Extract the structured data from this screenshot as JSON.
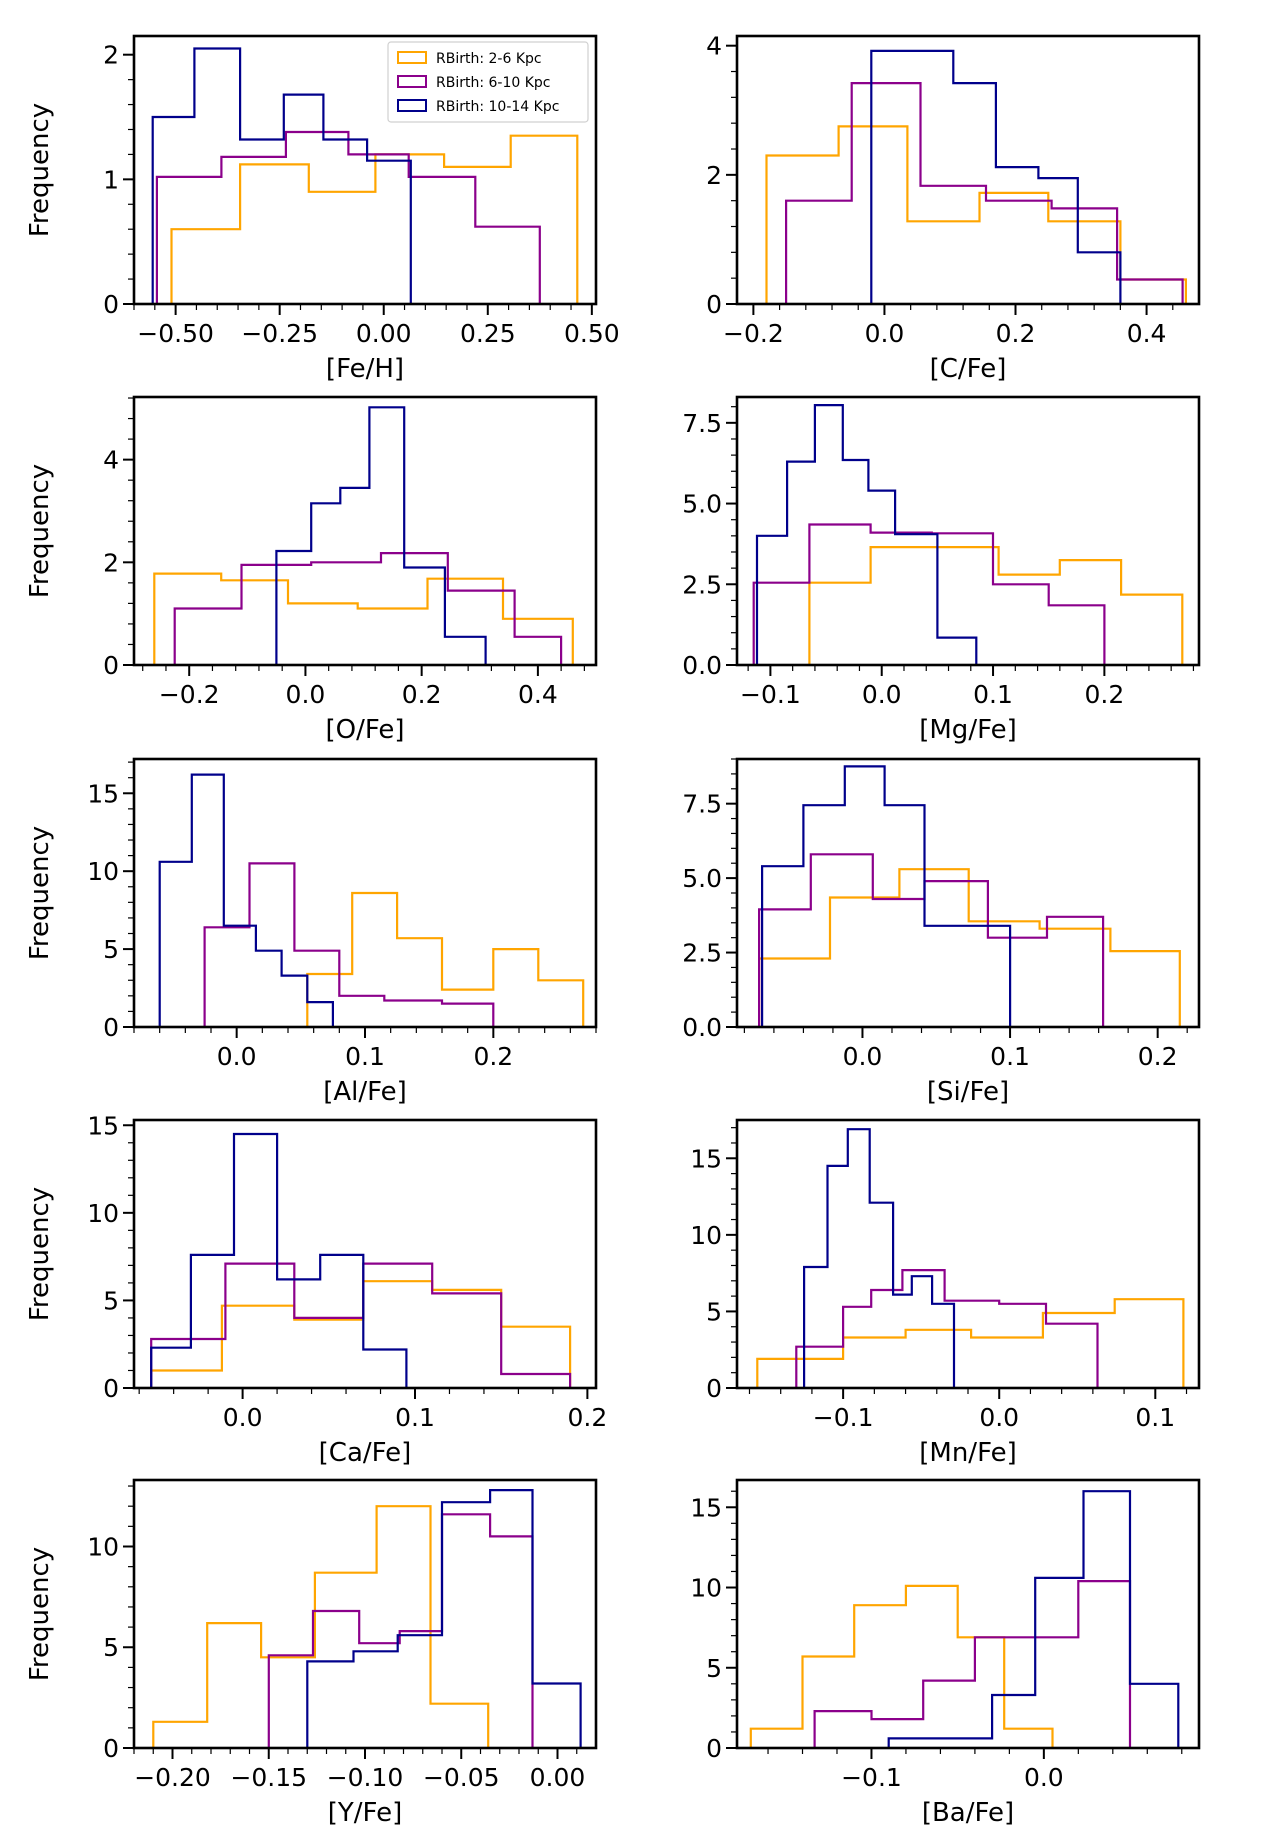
{
  "figure": {
    "legend": {
      "placement": "upper-right of first panel",
      "entries": [
        {
          "label": "RBirth: 2-6 Kpc",
          "color": "#FFA500"
        },
        {
          "label": "RBirth: 6-10 Kpc",
          "color": "#8B008B"
        },
        {
          "label": "RBirth: 10-14 Kpc",
          "color": "#00008B"
        }
      ]
    }
  },
  "chart_data": [
    {
      "type": "histogram",
      "xlabel": "[Fe/H]",
      "ylabel": "Frequency",
      "xlim": [
        -0.6,
        0.51
      ],
      "ylim": [
        0,
        2.15
      ],
      "xticks": [
        -0.5,
        -0.25,
        0.0,
        0.25,
        0.5
      ],
      "xtick_labels": [
        "−0.50",
        "−0.25",
        "0.00",
        "0.25",
        "0.50"
      ],
      "yticks": [
        0,
        1,
        2
      ],
      "ytick_labels": [
        "0",
        "1",
        "2"
      ],
      "series": [
        {
          "name": "RBirth: 2-6 Kpc",
          "color": "#FFA500",
          "edges": [
            -0.51,
            -0.345,
            -0.18,
            -0.02,
            0.145,
            0.305,
            0.465
          ],
          "values": [
            0.6,
            1.12,
            0.9,
            1.2,
            1.1,
            1.35
          ]
        },
        {
          "name": "RBirth: 6-10 Kpc",
          "color": "#8B008B",
          "edges": [
            -0.545,
            -0.39,
            -0.235,
            -0.085,
            0.06,
            0.22,
            0.375
          ],
          "values": [
            1.02,
            1.18,
            1.38,
            1.2,
            1.02,
            0.62
          ]
        },
        {
          "name": "RBirth: 10-14 Kpc",
          "color": "#00008B",
          "edges": [
            -0.555,
            -0.455,
            -0.345,
            -0.24,
            -0.145,
            -0.04,
            0.065
          ],
          "values": [
            1.5,
            2.05,
            1.32,
            1.68,
            1.32,
            1.15
          ]
        }
      ]
    },
    {
      "type": "histogram",
      "xlabel": "[C/Fe]",
      "ylabel": "",
      "xlim": [
        -0.225,
        0.48
      ],
      "ylim": [
        0,
        4.15
      ],
      "xticks": [
        -0.2,
        0.0,
        0.2,
        0.4
      ],
      "xtick_labels": [
        "−0.2",
        "0.0",
        "0.2",
        "0.4"
      ],
      "yticks": [
        0,
        2,
        4
      ],
      "ytick_labels": [
        "0",
        "2",
        "4"
      ],
      "series": [
        {
          "name": "RBirth: 2-6 Kpc",
          "color": "#FFA500",
          "edges": [
            -0.18,
            -0.07,
            0.035,
            0.145,
            0.25,
            0.36,
            0.46
          ],
          "values": [
            2.3,
            2.75,
            1.28,
            1.72,
            1.28,
            0.38
          ]
        },
        {
          "name": "RBirth: 6-10 Kpc",
          "color": "#8B008B",
          "edges": [
            -0.15,
            -0.05,
            0.055,
            0.155,
            0.255,
            0.355,
            0.455
          ],
          "values": [
            1.6,
            3.42,
            1.83,
            1.6,
            1.48,
            0.38
          ]
        },
        {
          "name": "RBirth: 10-14 Kpc",
          "color": "#00008B",
          "edges": [
            -0.02,
            0.105,
            0.17,
            0.235,
            0.295,
            0.36
          ],
          "values": [
            3.92,
            3.42,
            2.12,
            1.95,
            0.8
          ]
        }
      ]
    },
    {
      "type": "histogram",
      "xlabel": "[O/Fe]",
      "ylabel": "Frequency",
      "xlim": [
        -0.295,
        0.5
      ],
      "ylim": [
        0,
        5.22
      ],
      "xticks": [
        -0.2,
        0.0,
        0.2,
        0.4
      ],
      "xtick_labels": [
        "−0.2",
        "0.0",
        "0.2",
        "0.4"
      ],
      "yticks": [
        0,
        2,
        4
      ],
      "ytick_labels": [
        "0",
        "2",
        "4"
      ],
      "series": [
        {
          "name": "RBirth: 2-6 Kpc",
          "color": "#FFA500",
          "edges": [
            -0.26,
            -0.145,
            -0.03,
            0.09,
            0.21,
            0.34,
            0.46
          ],
          "values": [
            1.78,
            1.65,
            1.2,
            1.1,
            1.68,
            0.9
          ]
        },
        {
          "name": "RBirth: 6-10 Kpc",
          "color": "#8B008B",
          "edges": [
            -0.225,
            -0.11,
            0.01,
            0.13,
            0.245,
            0.36,
            0.44
          ],
          "values": [
            1.1,
            1.95,
            2.0,
            2.18,
            1.45,
            0.55
          ]
        },
        {
          "name": "RBirth: 10-14 Kpc",
          "color": "#00008B",
          "edges": [
            -0.05,
            0.01,
            0.06,
            0.11,
            0.17,
            0.24,
            0.31
          ],
          "values": [
            2.22,
            3.15,
            3.45,
            5.02,
            1.9,
            0.55
          ]
        }
      ]
    },
    {
      "type": "histogram",
      "xlabel": "[Mg/Fe]",
      "ylabel": "",
      "xlim": [
        -0.13,
        0.285
      ],
      "ylim": [
        0,
        8.3
      ],
      "xticks": [
        -0.1,
        0.0,
        0.1,
        0.2
      ],
      "xtick_labels": [
        "−0.1",
        "0.0",
        "0.1",
        "0.2"
      ],
      "yticks": [
        0,
        2.5,
        5.0,
        7.5
      ],
      "ytick_labels": [
        "0.0",
        "2.5",
        "5.0",
        "7.5"
      ],
      "series": [
        {
          "name": "RBirth: 2-6 Kpc",
          "color": "#FFA500",
          "edges": [
            -0.065,
            -0.01,
            0.05,
            0.105,
            0.16,
            0.215,
            0.27
          ],
          "values": [
            2.55,
            3.65,
            3.65,
            2.8,
            3.25,
            2.18
          ]
        },
        {
          "name": "RBirth: 6-10 Kpc",
          "color": "#8B008B",
          "edges": [
            -0.115,
            -0.065,
            -0.01,
            0.045,
            0.1,
            0.15,
            0.2
          ],
          "values": [
            2.55,
            4.35,
            4.1,
            4.08,
            2.5,
            1.85
          ]
        },
        {
          "name": "RBirth: 10-14 Kpc",
          "color": "#00008B",
          "edges": [
            -0.112,
            -0.085,
            -0.06,
            -0.035,
            -0.012,
            0.012,
            0.05,
            0.085
          ],
          "values": [
            4.0,
            6.3,
            8.05,
            6.35,
            5.4,
            4.05,
            0.85
          ]
        }
      ]
    },
    {
      "type": "histogram",
      "xlabel": "[Al/Fe]",
      "ylabel": "Frequency",
      "xlim": [
        -0.08,
        0.28
      ],
      "ylim": [
        0,
        17.2
      ],
      "xticks": [
        0.0,
        0.1,
        0.2
      ],
      "xtick_labels": [
        "0.0",
        "0.1",
        "0.2"
      ],
      "yticks": [
        0,
        5,
        10,
        15
      ],
      "ytick_labels": [
        "0",
        "5",
        "10",
        "15"
      ],
      "series": [
        {
          "name": "RBirth: 2-6 Kpc",
          "color": "#FFA500",
          "edges": [
            0.055,
            0.09,
            0.125,
            0.16,
            0.2,
            0.235,
            0.27
          ],
          "values": [
            3.4,
            8.6,
            5.7,
            2.4,
            5.0,
            3.0
          ]
        },
        {
          "name": "RBirth: 6-10 Kpc",
          "color": "#8B008B",
          "edges": [
            -0.025,
            0.01,
            0.045,
            0.08,
            0.115,
            0.16,
            0.2
          ],
          "values": [
            6.4,
            10.5,
            4.9,
            2.0,
            1.7,
            1.5
          ]
        },
        {
          "name": "RBirth: 10-14 Kpc",
          "color": "#00008B",
          "edges": [
            -0.06,
            -0.035,
            -0.01,
            0.015,
            0.035,
            0.055,
            0.075
          ],
          "values": [
            10.6,
            16.2,
            6.5,
            4.9,
            3.3,
            1.6
          ]
        }
      ]
    },
    {
      "type": "histogram",
      "xlabel": "[Si/Fe]",
      "ylabel": "",
      "xlim": [
        -0.085,
        0.228
      ],
      "ylim": [
        0,
        9.0
      ],
      "xticks": [
        0.0,
        0.1,
        0.2
      ],
      "xtick_labels": [
        "0.0",
        "0.1",
        "0.2"
      ],
      "yticks": [
        0,
        2.5,
        5.0,
        7.5
      ],
      "ytick_labels": [
        "0.0",
        "2.5",
        "5.0",
        "7.5"
      ],
      "series": [
        {
          "name": "RBirth: 2-6 Kpc",
          "color": "#FFA500",
          "edges": [
            -0.07,
            -0.022,
            0.025,
            0.072,
            0.12,
            0.168,
            0.215
          ],
          "values": [
            2.3,
            4.35,
            5.3,
            3.55,
            3.3,
            2.55
          ]
        },
        {
          "name": "RBirth: 6-10 Kpc",
          "color": "#8B008B",
          "edges": [
            -0.07,
            -0.035,
            0.007,
            0.042,
            0.085,
            0.125,
            0.163
          ],
          "values": [
            3.95,
            5.8,
            4.3,
            4.9,
            3.0,
            3.7
          ]
        },
        {
          "name": "RBirth: 10-14 Kpc",
          "color": "#00008B",
          "edges": [
            -0.068,
            -0.04,
            -0.012,
            0.015,
            0.042,
            0.07,
            0.1
          ],
          "values": [
            5.4,
            7.45,
            8.75,
            7.45,
            3.4,
            3.4
          ]
        }
      ]
    },
    {
      "type": "histogram",
      "xlabel": "[Ca/Fe]",
      "ylabel": "Frequency",
      "xlim": [
        -0.063,
        0.205
      ],
      "ylim": [
        0,
        15.3
      ],
      "xticks": [
        0.0,
        0.1,
        0.2
      ],
      "xtick_labels": [
        "0.0",
        "0.1",
        "0.2"
      ],
      "yticks": [
        0,
        5,
        10,
        15
      ],
      "ytick_labels": [
        "0",
        "5",
        "10",
        "15"
      ],
      "series": [
        {
          "name": "RBirth: 2-6 Kpc",
          "color": "#FFA500",
          "edges": [
            -0.053,
            -0.012,
            0.03,
            0.07,
            0.11,
            0.15,
            0.19
          ],
          "values": [
            1.0,
            4.7,
            3.9,
            6.1,
            5.6,
            3.5
          ]
        },
        {
          "name": "RBirth: 6-10 Kpc",
          "color": "#8B008B",
          "edges": [
            -0.053,
            -0.01,
            0.03,
            0.07,
            0.11,
            0.15,
            0.19
          ],
          "values": [
            2.8,
            7.1,
            4.0,
            7.1,
            5.4,
            0.8
          ]
        },
        {
          "name": "RBirth: 10-14 Kpc",
          "color": "#00008B",
          "edges": [
            -0.053,
            -0.03,
            -0.005,
            0.02,
            0.045,
            0.07,
            0.095
          ],
          "values": [
            2.3,
            7.6,
            14.5,
            6.2,
            7.6,
            2.2
          ]
        }
      ]
    },
    {
      "type": "histogram",
      "xlabel": "[Mn/Fe]",
      "ylabel": "",
      "xlim": [
        -0.168,
        0.128
      ],
      "ylim": [
        0,
        17.5
      ],
      "xticks": [
        -0.1,
        0.0,
        0.1
      ],
      "xtick_labels": [
        "−0.1",
        "0.0",
        "0.1"
      ],
      "yticks": [
        0,
        5,
        10,
        15
      ],
      "ytick_labels": [
        "0",
        "5",
        "10",
        "15"
      ],
      "series": [
        {
          "name": "RBirth: 2-6 Kpc",
          "color": "#FFA500",
          "edges": [
            -0.155,
            -0.1,
            -0.08,
            -0.06,
            -0.018,
            0.028,
            0.074,
            0.118
          ],
          "values": [
            1.9,
            3.3,
            3.3,
            3.8,
            3.3,
            4.9,
            5.8
          ]
        },
        {
          "name": "RBirth: 6-10 Kpc",
          "color": "#8B008B",
          "edges": [
            -0.13,
            -0.1,
            -0.082,
            -0.062,
            -0.035,
            0.0,
            0.03,
            0.063
          ],
          "values": [
            2.7,
            5.3,
            6.4,
            7.7,
            5.7,
            5.5,
            4.2
          ]
        },
        {
          "name": "RBirth: 10-14 Kpc",
          "color": "#00008B",
          "edges": [
            -0.125,
            -0.11,
            -0.097,
            -0.083,
            -0.068,
            -0.056,
            -0.043,
            -0.029
          ],
          "values": [
            7.9,
            14.5,
            16.9,
            12.1,
            6.1,
            7.3,
            5.5
          ]
        }
      ]
    },
    {
      "type": "histogram",
      "xlabel": "[Y/Fe]",
      "ylabel": "Frequency",
      "xlim": [
        -0.22,
        0.02
      ],
      "ylim": [
        0,
        13.3
      ],
      "xticks": [
        -0.2,
        -0.15,
        -0.1,
        -0.05,
        0.0
      ],
      "xtick_labels": [
        "−0.20",
        "−0.15",
        "−0.10",
        "−0.05",
        "0.00"
      ],
      "yticks": [
        0,
        5,
        10
      ],
      "ytick_labels": [
        "0",
        "5",
        "10"
      ],
      "series": [
        {
          "name": "RBirth: 2-6 Kpc",
          "color": "#FFA500",
          "edges": [
            -0.21,
            -0.182,
            -0.154,
            -0.126,
            -0.094,
            -0.066,
            -0.036
          ],
          "values": [
            1.3,
            6.2,
            4.5,
            8.7,
            12.0,
            2.2
          ]
        },
        {
          "name": "RBirth: 6-10 Kpc",
          "color": "#8B008B",
          "edges": [
            -0.15,
            -0.127,
            -0.103,
            -0.082,
            -0.06,
            -0.035,
            -0.013
          ],
          "values": [
            4.6,
            6.8,
            5.2,
            5.8,
            11.6,
            10.5
          ]
        },
        {
          "name": "RBirth: 10-14 Kpc",
          "color": "#00008B",
          "edges": [
            -0.13,
            -0.106,
            -0.083,
            -0.06,
            -0.035,
            -0.013,
            0.012
          ],
          "values": [
            4.3,
            4.8,
            5.6,
            12.2,
            12.8,
            3.2
          ]
        }
      ]
    },
    {
      "type": "histogram",
      "xlabel": "[Ba/Fe]",
      "ylabel": "",
      "xlim": [
        -0.178,
        0.09
      ],
      "ylim": [
        0,
        16.7
      ],
      "xticks": [
        -0.1,
        0.0
      ],
      "xtick_labels": [
        "−0.1",
        "0.0"
      ],
      "yticks": [
        0,
        5,
        10,
        15
      ],
      "ytick_labels": [
        "0",
        "5",
        "10",
        "15"
      ],
      "series": [
        {
          "name": "RBirth: 2-6 Kpc",
          "color": "#FFA500",
          "edges": [
            -0.17,
            -0.14,
            -0.11,
            -0.08,
            -0.05,
            -0.023,
            0.005
          ],
          "values": [
            1.2,
            5.7,
            8.9,
            10.1,
            6.9,
            1.2
          ]
        },
        {
          "name": "RBirth: 6-10 Kpc",
          "color": "#8B008B",
          "edges": [
            -0.133,
            -0.1,
            -0.07,
            -0.04,
            -0.01,
            0.02,
            0.05
          ],
          "values": [
            2.3,
            1.8,
            4.2,
            6.9,
            6.9,
            10.4
          ]
        },
        {
          "name": "RBirth: 10-14 Kpc",
          "color": "#00008B",
          "edges": [
            -0.09,
            -0.03,
            -0.005,
            0.023,
            0.05,
            0.078
          ],
          "values": [
            0.6,
            3.3,
            10.6,
            16.0,
            4.0
          ]
        }
      ]
    }
  ]
}
